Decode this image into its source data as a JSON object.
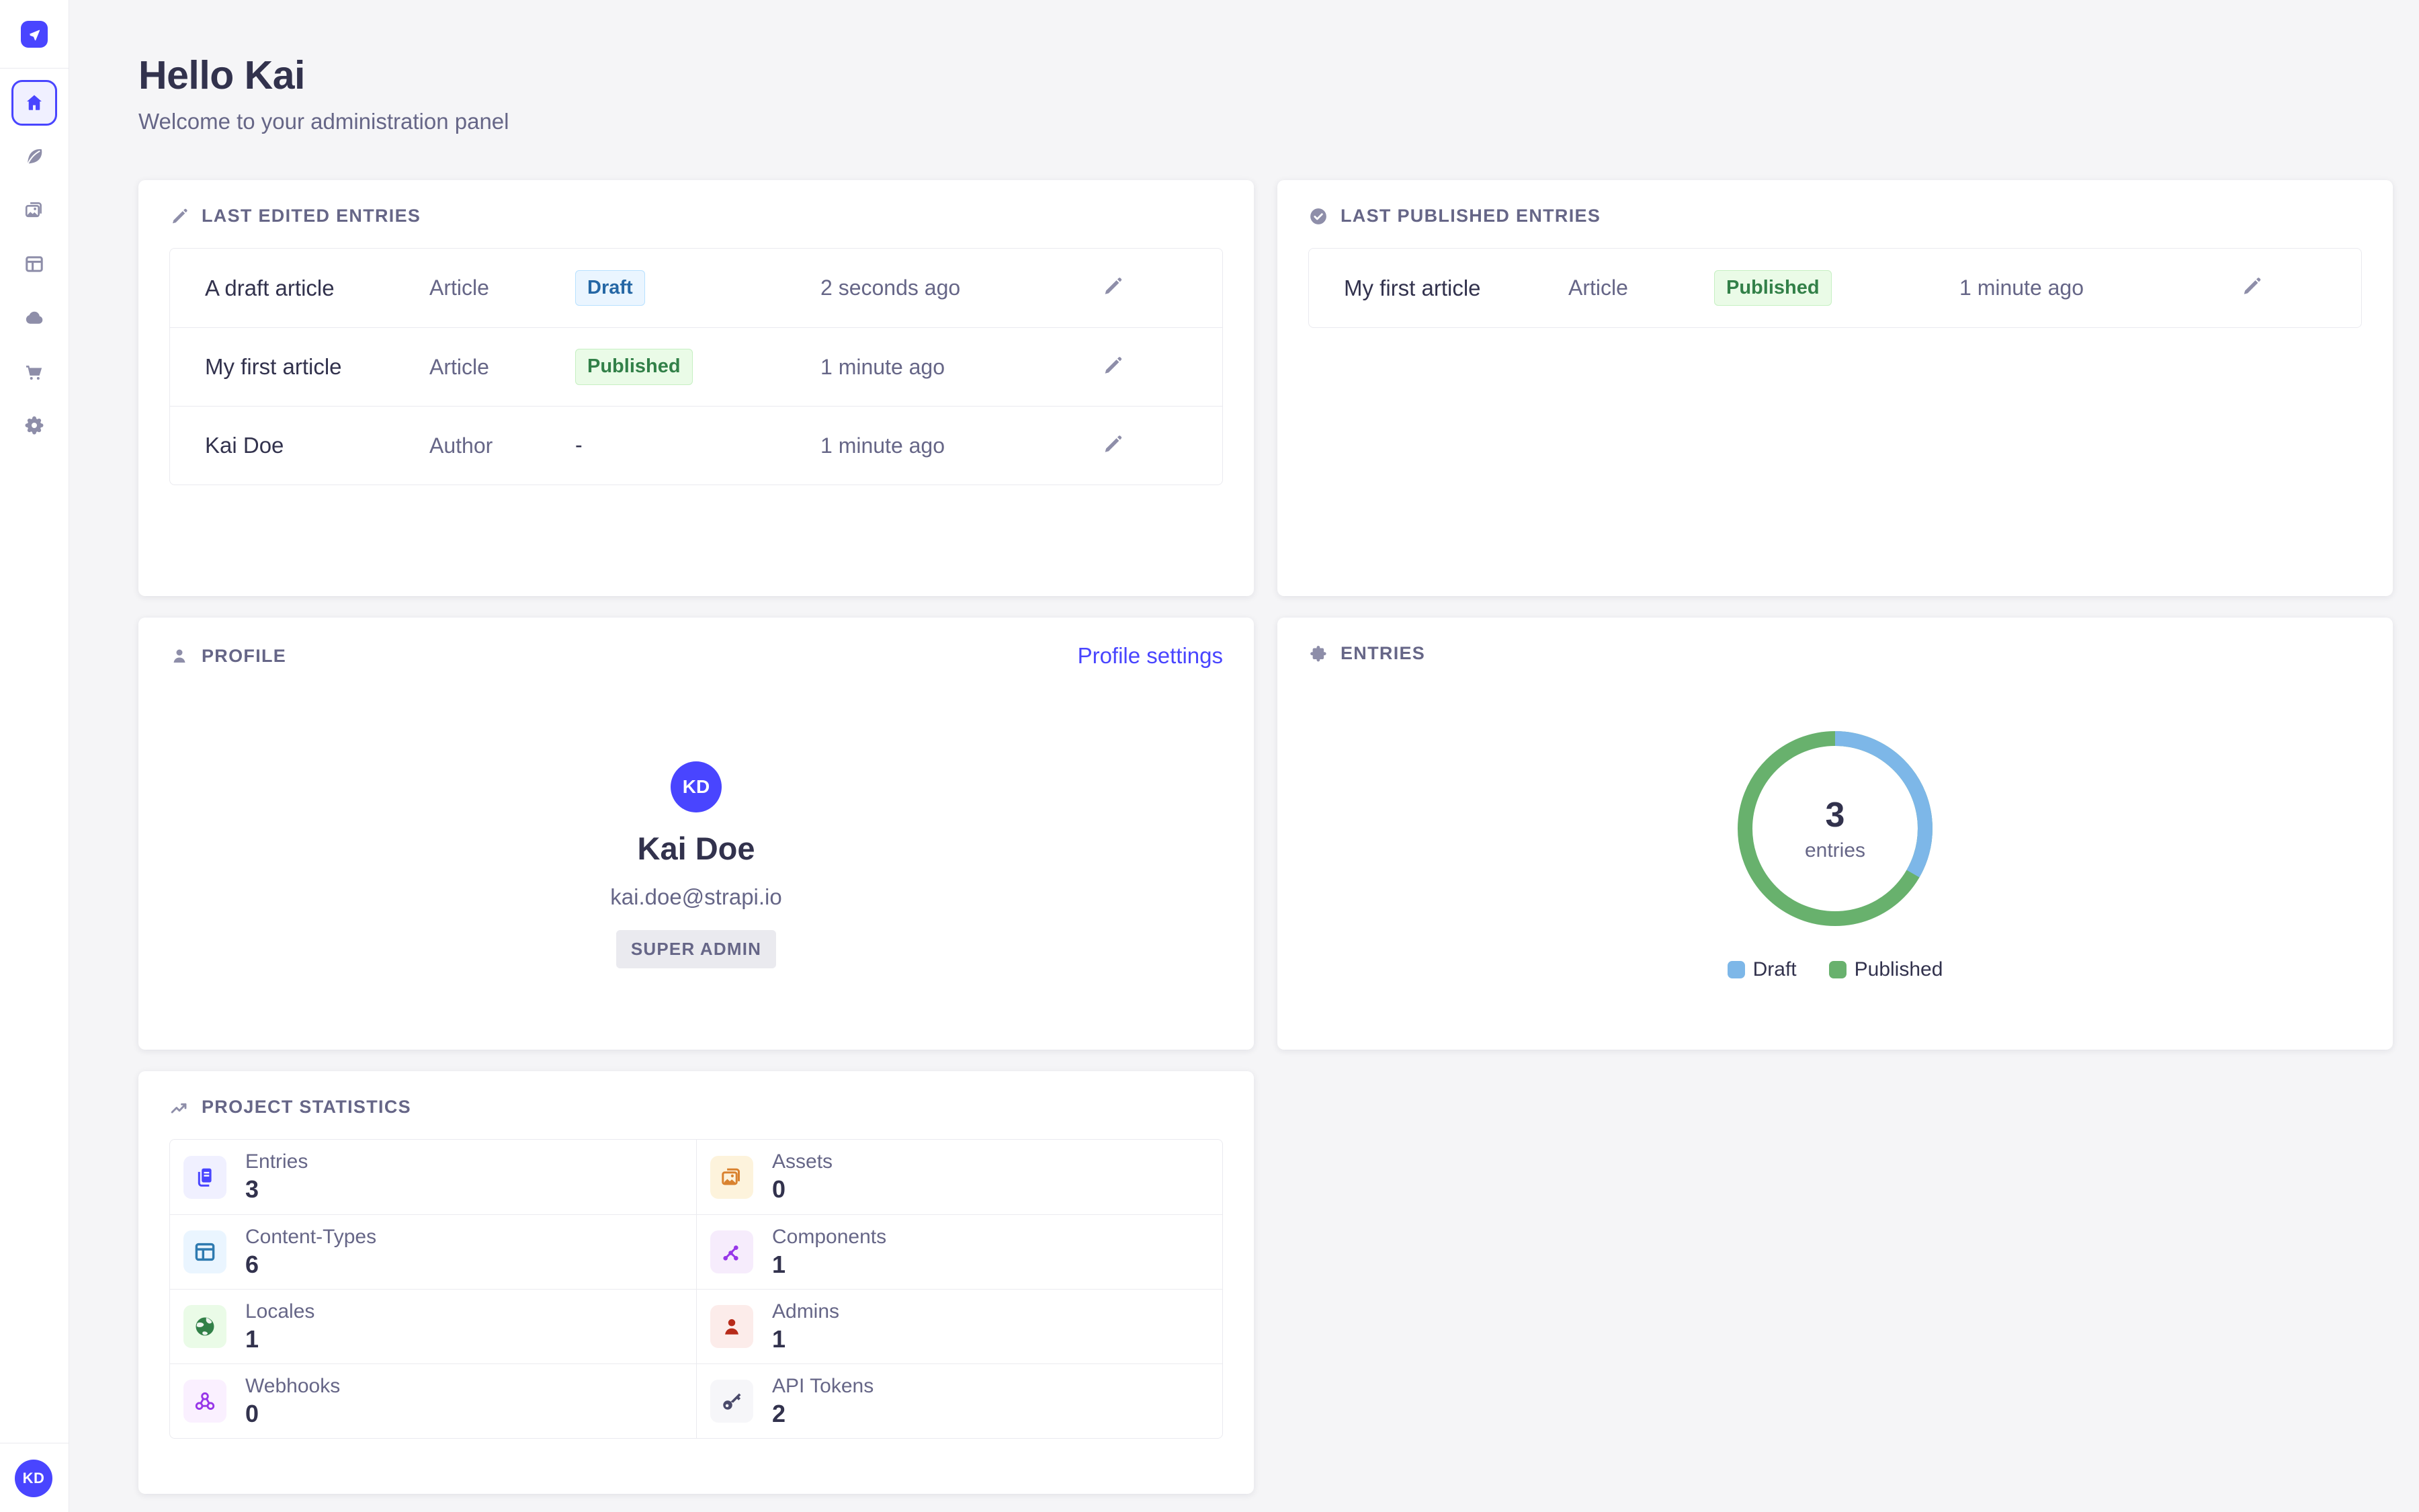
{
  "colors": {
    "accent": "#4945ff",
    "page_background": "#f5f5f7",
    "card_background": "#ffffff",
    "muted_text": "#666687",
    "dark_text": "#32324d",
    "icon_gray": "#8e8ea9"
  },
  "sidebar": {
    "logo_icon": "strapi-logo-icon",
    "items": [
      {
        "id": "home",
        "icon": "home-icon",
        "active": true
      },
      {
        "id": "content-manager",
        "icon": "feather-icon",
        "active": false
      },
      {
        "id": "media-library",
        "icon": "media-library-icon",
        "active": false
      },
      {
        "id": "content-type-builder",
        "icon": "layout-icon",
        "active": false
      },
      {
        "id": "deploy",
        "icon": "cloud-icon",
        "active": false
      },
      {
        "id": "marketplace",
        "icon": "cart-icon",
        "active": false
      },
      {
        "id": "settings",
        "icon": "gear-icon",
        "active": false
      }
    ],
    "user_avatar_initials": "KD"
  },
  "header": {
    "title": "Hello Kai",
    "subtitle": "Welcome to your administration panel"
  },
  "last_edited": {
    "icon": "pencil-icon",
    "title": "LAST EDITED ENTRIES",
    "rows": [
      {
        "name": "A draft article",
        "type": "Article",
        "status": "Draft",
        "status_kind": "draft",
        "time": "2 seconds ago"
      },
      {
        "name": "My first article",
        "type": "Article",
        "status": "Published",
        "status_kind": "published",
        "time": "1 minute ago"
      },
      {
        "name": "Kai Doe",
        "type": "Author",
        "status": "-",
        "status_kind": "none",
        "time": "1 minute ago"
      }
    ]
  },
  "last_published": {
    "icon": "check-circle-icon",
    "title": "LAST PUBLISHED ENTRIES",
    "rows": [
      {
        "name": "My first article",
        "type": "Article",
        "status": "Published",
        "status_kind": "published",
        "time": "1 minute ago"
      }
    ]
  },
  "profile": {
    "icon": "user-icon",
    "title": "PROFILE",
    "settings_link": "Profile settings",
    "avatar_initials": "KD",
    "name": "Kai Doe",
    "email": "kai.doe@strapi.io",
    "role_badge": "SUPER ADMIN"
  },
  "entries_card": {
    "icon": "puzzle-icon",
    "title": "ENTRIES"
  },
  "chart_data": {
    "type": "pie",
    "variant": "donut",
    "title": "ENTRIES",
    "labels": [
      "Draft",
      "Published"
    ],
    "values": [
      1,
      2
    ],
    "colors": {
      "Draft": "#7db7e8",
      "Published": "#68b16d"
    },
    "center_value": "3",
    "center_label": "entries",
    "legend_position": "bottom"
  },
  "project_statistics": {
    "icon": "trend-up-icon",
    "title": "PROJECT STATISTICS",
    "items": [
      {
        "label": "Entries",
        "value": "3",
        "icon": "entries-icon",
        "color": "#4945ff",
        "bg": "#f0f0ff"
      },
      {
        "label": "Assets",
        "value": "0",
        "icon": "assets-icon",
        "color": "#d9822f",
        "bg": "#fdf3dc"
      },
      {
        "label": "Content-Types",
        "value": "6",
        "icon": "content-types-icon",
        "color": "#2e7ab0",
        "bg": "#eaf5ff"
      },
      {
        "label": "Components",
        "value": "1",
        "icon": "components-icon",
        "color": "#9736e8",
        "bg": "#f6ecfc"
      },
      {
        "label": "Locales",
        "value": "1",
        "icon": "locales-icon",
        "color": "#328048",
        "bg": "#eafbe7"
      },
      {
        "label": "Admins",
        "value": "1",
        "icon": "admins-icon",
        "color": "#b72b1a",
        "bg": "#fcecea"
      },
      {
        "label": "Webhooks",
        "value": "0",
        "icon": "webhooks-icon",
        "color": "#9736e8",
        "bg": "#faf0ff"
      },
      {
        "label": "API Tokens",
        "value": "2",
        "icon": "api-tokens-icon",
        "color": "#4a4a6a",
        "bg": "#f6f6f9"
      }
    ]
  }
}
